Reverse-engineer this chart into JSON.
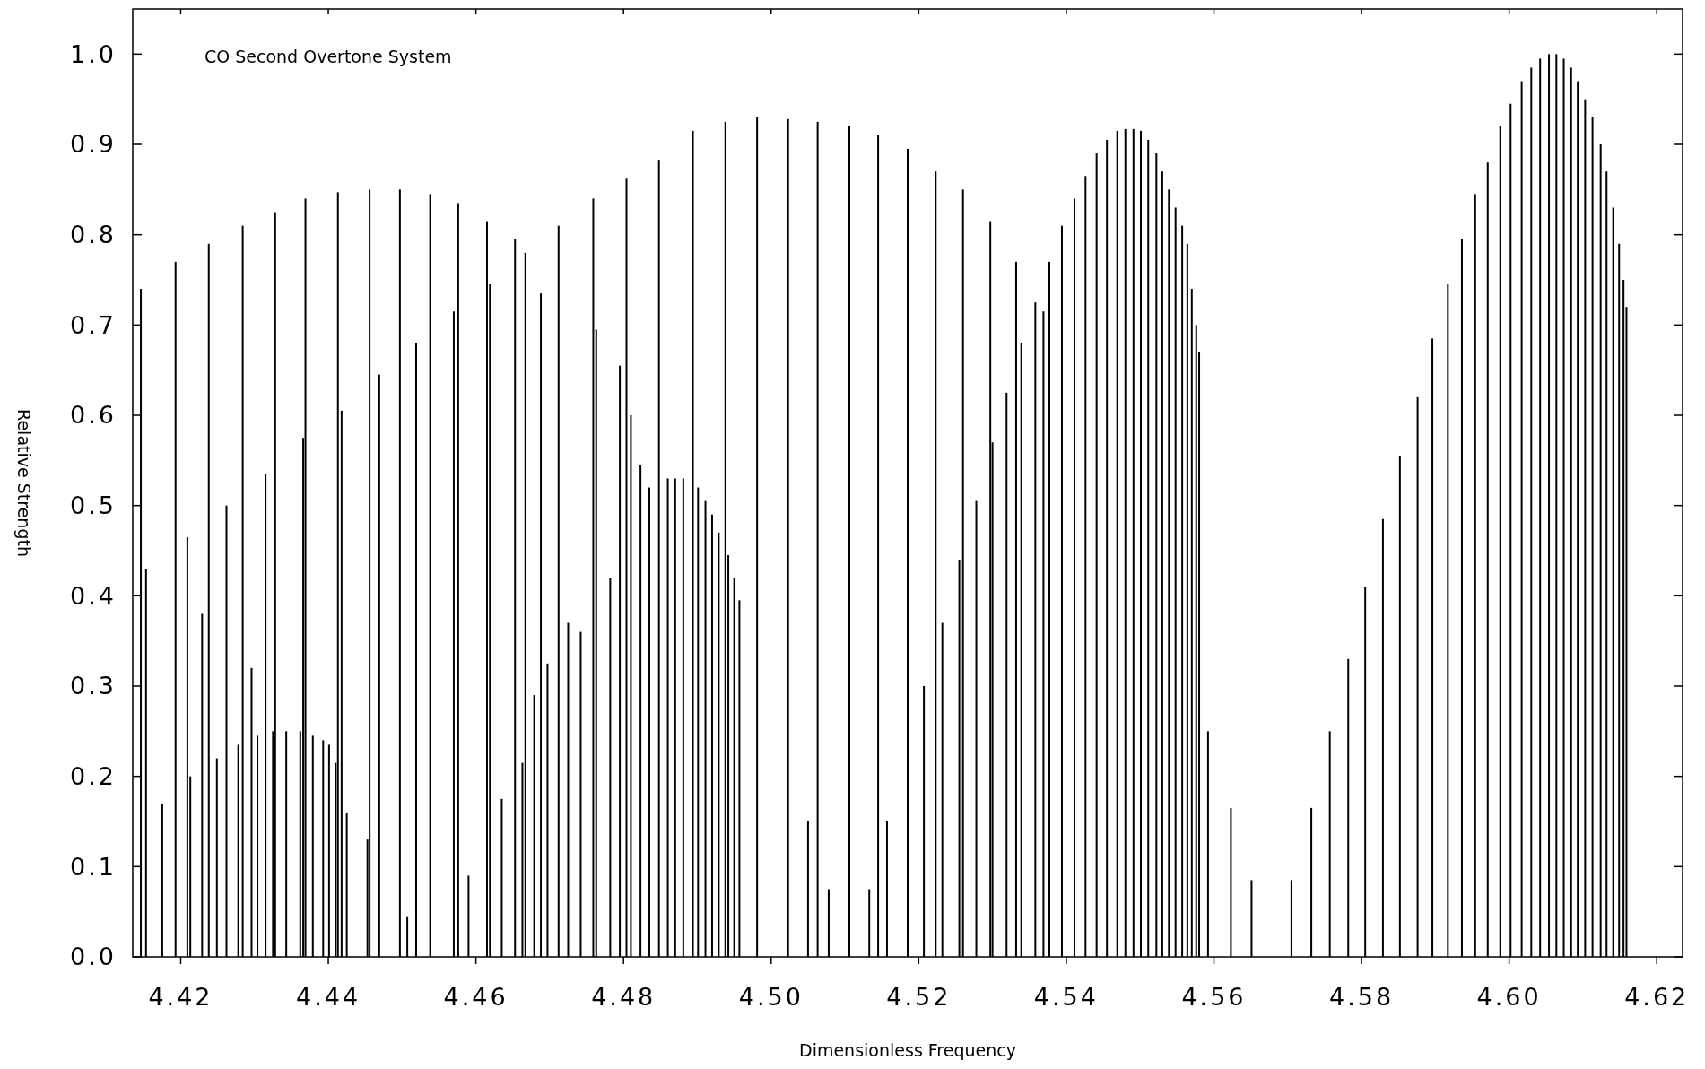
{
  "chart_data": {
    "type": "bar",
    "title": "CO Second Overtone System",
    "xlabel": "Dimensionless Frequency",
    "ylabel": "Relative Strength",
    "xlim": [
      4.4135,
      4.6235
    ],
    "ylim": [
      0,
      1.05
    ],
    "xticks": [
      4.42,
      4.44,
      4.46,
      4.48,
      {
        "value": 4.5,
        "label": "4.50"
      },
      4.52,
      4.54,
      4.56,
      4.58,
      {
        "value": 4.6,
        "label": "4.60"
      },
      4.62
    ],
    "yticks": [
      {
        "value": 0,
        "label": "0.0"
      },
      0.1,
      0.2,
      0.3,
      0.4,
      0.5,
      0.6,
      0.7,
      0.8,
      0.9,
      {
        "value": 1.0,
        "label": "1.0"
      }
    ],
    "grid": false,
    "series": [
      {
        "color": "#000000",
        "x": [
          4.4146,
          4.4153,
          4.4175,
          4.4193,
          4.4209,
          4.4213,
          4.4229,
          4.4238,
          4.4249,
          4.4262,
          4.4278,
          4.4284,
          4.4296,
          4.4304,
          4.4315,
          4.4325,
          4.4328,
          4.4343,
          4.4362,
          4.4366,
          4.4369,
          4.4379,
          4.4393,
          4.4401,
          4.441,
          4.4413,
          4.4418,
          4.4425,
          4.4453,
          4.4456,
          4.4469,
          4.4497,
          4.4507,
          4.4519,
          4.4538,
          4.457,
          4.4576,
          4.459,
          4.4615,
          4.4619,
          4.4635,
          4.4653,
          4.4663,
          4.4667,
          4.4679,
          4.4688,
          4.4697,
          4.4712,
          4.4725,
          4.4742,
          4.4759,
          4.4763,
          4.4782,
          4.4795,
          4.4804,
          4.481,
          4.4823,
          4.4835,
          4.4848,
          4.486,
          4.487,
          4.4881,
          4.4894,
          4.4901,
          4.4911,
          4.492,
          4.4929,
          4.4938,
          4.4942,
          4.495,
          4.4957,
          4.4981,
          4.5023,
          4.505,
          4.5063,
          4.5078,
          4.5106,
          4.5133,
          4.5145,
          4.5157,
          4.5185,
          4.5207,
          4.5223,
          4.5232,
          4.5255,
          4.526,
          4.5278,
          4.5297,
          4.53,
          4.5319,
          4.5332,
          4.5339,
          4.5358,
          4.5369,
          4.5377,
          4.5394,
          4.5411,
          4.5426,
          4.5441,
          4.5455,
          4.5469,
          4.548,
          4.5491,
          4.5501,
          4.5511,
          4.5522,
          4.553,
          4.5539,
          4.5548,
          4.5557,
          4.5564,
          4.557,
          4.5576,
          4.558,
          4.5592,
          4.5623,
          4.5651,
          4.5705,
          4.5732,
          4.5757,
          4.5782,
          4.5805,
          4.5829,
          4.5852,
          4.5876,
          4.5896,
          4.5917,
          4.5936,
          4.5954,
          4.5971,
          4.5988,
          4.6002,
          4.6017,
          4.603,
          4.6042,
          4.6054,
          4.6064,
          4.6074,
          4.6084,
          4.6093,
          4.6103,
          4.6113,
          4.6124,
          4.6132,
          4.6141,
          4.6149,
          4.6155,
          4.6159
        ],
        "values": [
          0.74,
          0.43,
          0.17,
          0.77,
          0.465,
          0.2,
          0.38,
          0.79,
          0.22,
          0.5,
          0.235,
          0.81,
          0.32,
          0.245,
          0.535,
          0.25,
          0.825,
          0.25,
          0.25,
          0.575,
          0.84,
          0.245,
          0.24,
          0.235,
          0.215,
          0.847,
          0.605,
          0.16,
          0.13,
          0.85,
          0.645,
          0.85,
          0.045,
          0.68,
          0.845,
          0.715,
          0.835,
          0.09,
          0.815,
          0.745,
          0.175,
          0.795,
          0.215,
          0.78,
          0.29,
          0.735,
          0.325,
          0.81,
          0.37,
          0.36,
          0.84,
          0.695,
          0.42,
          0.655,
          0.862,
          0.6,
          0.545,
          0.52,
          0.883,
          0.53,
          0.53,
          0.53,
          0.915,
          0.52,
          0.505,
          0.49,
          0.47,
          0.925,
          0.445,
          0.42,
          0.395,
          0.93,
          0.928,
          0.15,
          0.925,
          0.075,
          0.92,
          0.075,
          0.91,
          0.15,
          0.895,
          0.3,
          0.87,
          0.37,
          0.44,
          0.85,
          0.505,
          0.815,
          0.57,
          0.625,
          0.77,
          0.68,
          0.725,
          0.715,
          0.77,
          0.81,
          0.84,
          0.865,
          0.89,
          0.905,
          0.915,
          0.917,
          0.917,
          0.915,
          0.905,
          0.89,
          0.87,
          0.85,
          0.83,
          0.81,
          0.79,
          0.74,
          0.7,
          0.67,
          0.25,
          0.165,
          0.085,
          0.085,
          0.165,
          0.25,
          0.33,
          0.41,
          0.485,
          0.555,
          0.62,
          0.685,
          0.745,
          0.795,
          0.845,
          0.88,
          0.92,
          0.945,
          0.97,
          0.985,
          0.995,
          1.0,
          1.0,
          0.995,
          0.985,
          0.97,
          0.95,
          0.93,
          0.9,
          0.87,
          0.83,
          0.79,
          0.75,
          0.72
        ]
      }
    ]
  }
}
